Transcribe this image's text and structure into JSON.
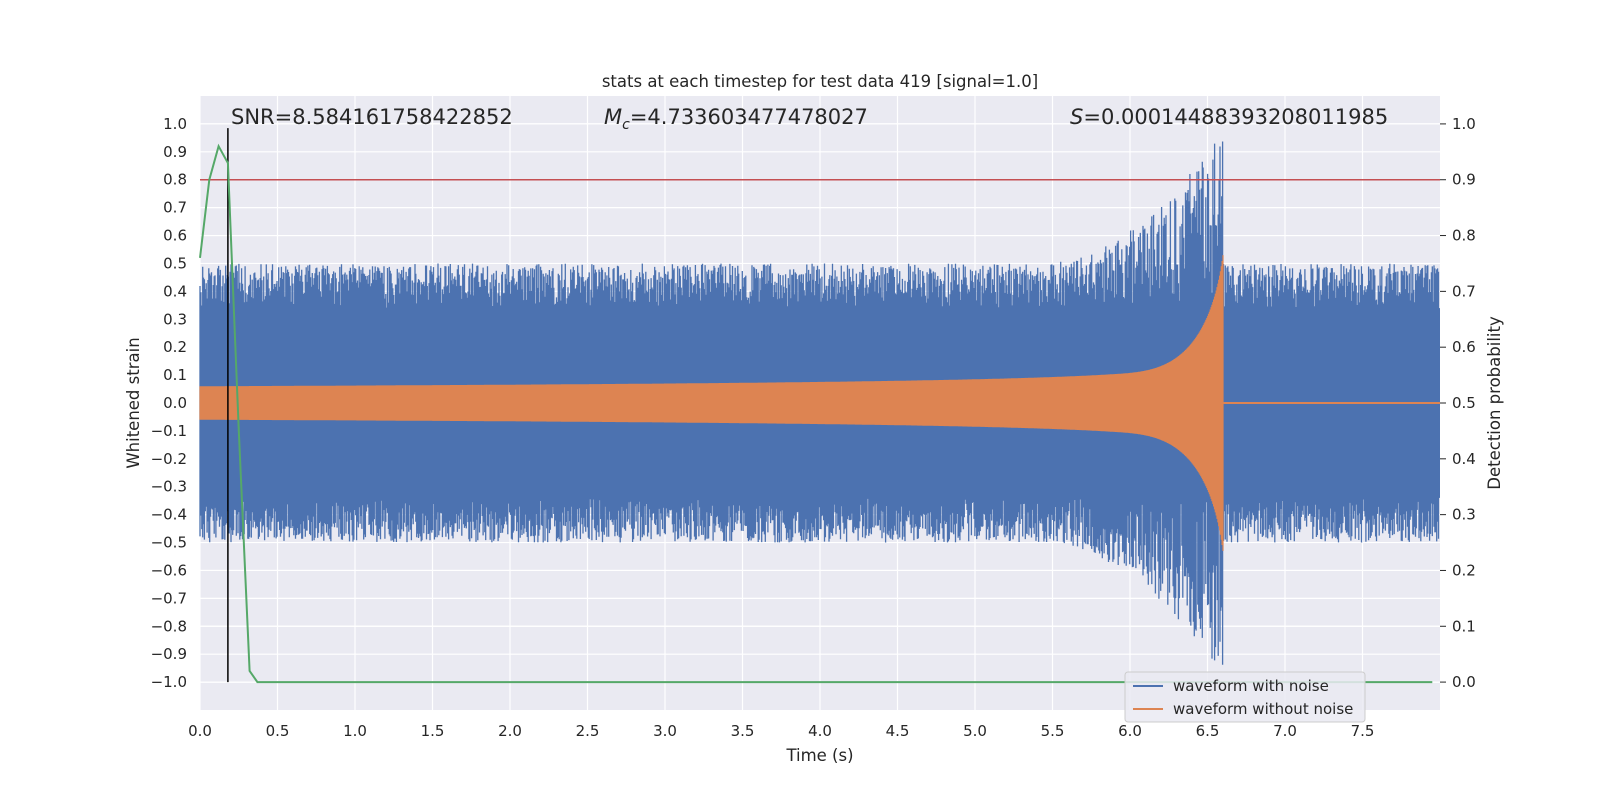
{
  "chart_data": {
    "type": "line",
    "title": "stats at each timestep for test data 419 [signal=1.0]",
    "xlabel": "Time (s)",
    "ylabel": "Whitened strain",
    "ylabel_right": "Detection probability",
    "xlim": [
      0.0,
      8.0
    ],
    "ylim": [
      -1.1,
      1.1
    ],
    "ylim_right": [
      -0.05,
      1.05
    ],
    "xticks": [
      "0.0",
      "0.5",
      "1.0",
      "1.5",
      "2.0",
      "2.5",
      "3.0",
      "3.5",
      "4.0",
      "4.5",
      "5.0",
      "5.5",
      "6.0",
      "6.5",
      "7.0",
      "7.5"
    ],
    "yticks": [
      "1.0",
      "0.9",
      "0.8",
      "0.7",
      "0.6",
      "0.5",
      "0.4",
      "0.3",
      "0.2",
      "0.1",
      "0.0",
      "−0.1",
      "−0.2",
      "−0.3",
      "−0.4",
      "−0.5",
      "−0.6",
      "−0.7",
      "−0.8",
      "−0.9",
      "−1.0"
    ],
    "yticks_right": [
      "1.0",
      "0.9",
      "0.8",
      "0.7",
      "0.6",
      "0.5",
      "0.4",
      "0.3",
      "0.2",
      "0.1",
      "0.0"
    ],
    "annotations": {
      "snr": "SNR=8.584161758422852",
      "mc_prefix": "M",
      "mc_sub": "c",
      "mc_value": "=4.733603477478027",
      "s_prefix": "S",
      "s_value": "=0.00014488393208011985"
    },
    "threshold_right": 0.9,
    "marker_time": 0.18,
    "merger_time": 6.6,
    "noisy_envelope": {
      "pre_merger_amplitude": 0.5,
      "peak_amplitude": 0.98
    },
    "clean_envelope": {
      "start_amplitude": 0.06,
      "peak_amplitude": 0.72,
      "post_merger_amplitude": 0.005
    },
    "detection_probability": {
      "t": [
        0.0,
        0.06,
        0.12,
        0.18,
        0.25,
        0.32,
        0.37,
        0.5,
        1.0,
        2.0,
        3.0,
        4.0,
        5.0,
        6.0,
        7.0,
        7.95
      ],
      "p": [
        0.76,
        0.9,
        0.96,
        0.93,
        0.45,
        0.02,
        0.0,
        0.0,
        0.0,
        0.0,
        0.0,
        0.0,
        0.0,
        0.0,
        0.0,
        0.0
      ]
    },
    "series": [
      {
        "name": "waveform with noise",
        "color": "#4c72b0"
      },
      {
        "name": "waveform without noise",
        "color": "#dd8452"
      },
      {
        "name": "detection probability",
        "color": "#55a868"
      }
    ],
    "threshold_color": "#c44e52",
    "marker_color": "#000000",
    "legend": {
      "location": "lower-right",
      "entries": [
        "waveform with noise",
        "waveform without noise"
      ]
    },
    "grid": true
  }
}
